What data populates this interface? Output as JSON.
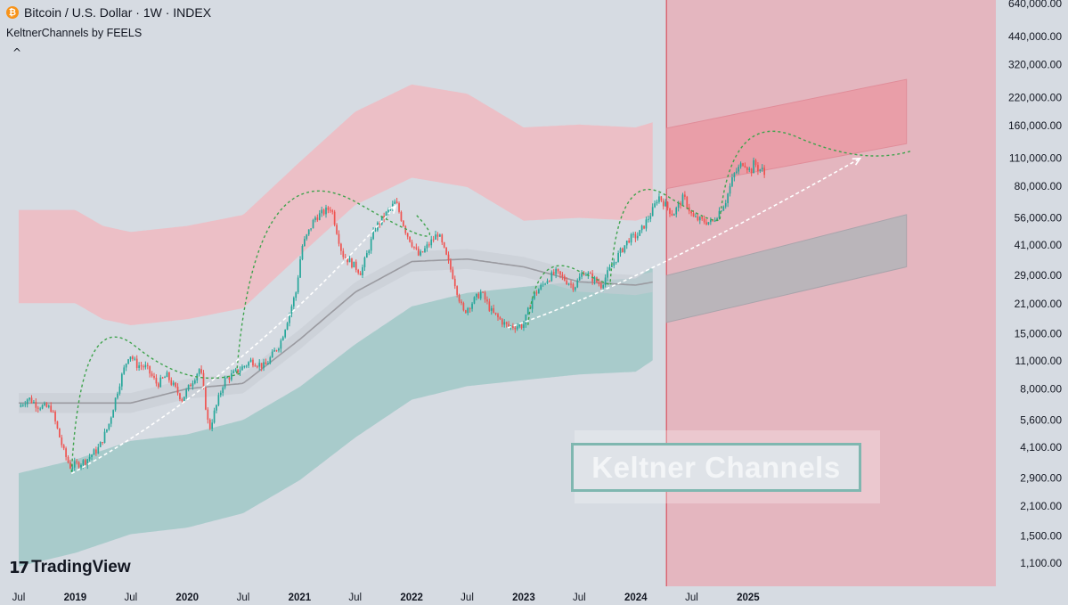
{
  "header": {
    "symbol_title": "Bitcoin / U.S. Dollar · 1W · INDEX",
    "coin_icon": "bitcoin-icon",
    "indicator": "KeltnerChannels by FEELS",
    "collapse_glyph": "^"
  },
  "watermark": {
    "text": "Keltner Channels"
  },
  "branding": {
    "logo_glyph": "17",
    "name": "TradingView"
  },
  "colors": {
    "up": "#26a69a",
    "down": "#ef5350",
    "upper_band": "#f1b8bf",
    "lower_band": "#9cc7c5",
    "midline": "#9a9aa0",
    "highlight_zone": "#e8a9b3",
    "arc": "#3fa34d"
  },
  "chart_data": {
    "type": "candlestick",
    "title": "Bitcoin / U.S. Dollar · 1W · INDEX",
    "scale": "log",
    "y_ticks": [
      1100,
      1500,
      2100,
      2900,
      4100,
      5600,
      8000,
      11000,
      15000,
      21000,
      29000,
      41000,
      56000,
      80000,
      110000,
      160000,
      220000,
      320000,
      440000,
      640000
    ],
    "y_tick_labels": [
      "1,100.00",
      "1,500.00",
      "2,100.00",
      "2,900.00",
      "4,100.00",
      "5,600.00",
      "8,000.00",
      "11,000.00",
      "15,000.00",
      "21,000.00",
      "29,000.00",
      "41,000.00",
      "56,000.00",
      "80,000.00",
      "110,000.00",
      "160,000.00",
      "220,000.00",
      "320,000.00",
      "440,000.00",
      "640,000.00"
    ],
    "x_ticks": [
      {
        "date": "2018-07",
        "label": "Jul"
      },
      {
        "date": "2019-01",
        "label": "2019"
      },
      {
        "date": "2019-07",
        "label": "Jul"
      },
      {
        "date": "2020-01",
        "label": "2020"
      },
      {
        "date": "2020-07",
        "label": "Jul"
      },
      {
        "date": "2021-01",
        "label": "2021"
      },
      {
        "date": "2021-07",
        "label": "Jul"
      },
      {
        "date": "2022-01",
        "label": "2022"
      },
      {
        "date": "2022-07",
        "label": "Jul"
      },
      {
        "date": "2023-01",
        "label": "2023"
      },
      {
        "date": "2023-07",
        "label": "Jul"
      },
      {
        "date": "2024-01",
        "label": "2024"
      },
      {
        "date": "2024-07",
        "label": "Jul"
      },
      {
        "date": "2025-01",
        "label": "2025"
      }
    ],
    "price_path": [
      [
        "2018-07-01",
        6500
      ],
      [
        "2018-08-01",
        7200
      ],
      [
        "2018-09-01",
        6600
      ],
      [
        "2018-10-15",
        6400
      ],
      [
        "2018-11-25",
        3900
      ],
      [
        "2018-12-15",
        3300
      ],
      [
        "2019-02-01",
        3500
      ],
      [
        "2019-03-20",
        4100
      ],
      [
        "2019-04-20",
        5300
      ],
      [
        "2019-05-25",
        8500
      ],
      [
        "2019-06-26",
        12000
      ],
      [
        "2019-07-20",
        10500
      ],
      [
        "2019-08-20",
        10200
      ],
      [
        "2019-09-25",
        8400
      ],
      [
        "2019-10-26",
        9300
      ],
      [
        "2019-12-15",
        7100
      ],
      [
        "2020-02-12",
        10200
      ],
      [
        "2020-03-12",
        5000
      ],
      [
        "2020-04-30",
        8800
      ],
      [
        "2020-06-01",
        9500
      ],
      [
        "2020-07-27",
        11000
      ],
      [
        "2020-09-10",
        10300
      ],
      [
        "2020-10-30",
        13500
      ],
      [
        "2020-12-20",
        24000
      ],
      [
        "2021-01-08",
        40000
      ],
      [
        "2021-02-20",
        56000
      ],
      [
        "2021-04-14",
        63000
      ],
      [
        "2021-05-20",
        37000
      ],
      [
        "2021-07-20",
        30000
      ],
      [
        "2021-09-05",
        50000
      ],
      [
        "2021-11-10",
        67000
      ],
      [
        "2021-12-15",
        47000
      ],
      [
        "2022-01-25",
        36000
      ],
      [
        "2022-03-28",
        47000
      ],
      [
        "2022-05-15",
        29000
      ],
      [
        "2022-06-18",
        19000
      ],
      [
        "2022-08-15",
        24000
      ],
      [
        "2022-09-20",
        19000
      ],
      [
        "2022-11-10",
        16200
      ],
      [
        "2022-12-31",
        16500
      ],
      [
        "2023-02-01",
        23000
      ],
      [
        "2023-03-20",
        28000
      ],
      [
        "2023-04-15",
        30000
      ],
      [
        "2023-06-15",
        25500
      ],
      [
        "2023-07-15",
        30500
      ],
      [
        "2023-09-10",
        26000
      ],
      [
        "2023-10-25",
        34500
      ],
      [
        "2023-12-10",
        44000
      ],
      [
        "2024-01-10",
        46000
      ],
      [
        "2024-02-28",
        62000
      ],
      [
        "2024-03-14",
        72000
      ],
      [
        "2024-05-01",
        58000
      ],
      [
        "2024-06-05",
        71000
      ],
      [
        "2024-07-05",
        56000
      ],
      [
        "2024-08-05",
        54000
      ],
      [
        "2024-09-06",
        53000
      ],
      [
        "2024-10-20",
        68000
      ],
      [
        "2024-11-15",
        91000
      ],
      [
        "2024-12-17",
        106000
      ],
      [
        "2025-01-10",
        94000
      ],
      [
        "2025-01-21",
        106000
      ],
      [
        "2025-02-01",
        98000
      ],
      [
        "2025-02-20",
        96000
      ],
      [
        "2025-02-28",
        84000
      ]
    ],
    "keltner_upper": [
      [
        "2018-07-01",
        36000
      ],
      [
        "2019-01-01",
        36000
      ],
      [
        "2019-04-01",
        30000
      ],
      [
        "2019-07-01",
        28000
      ],
      [
        "2020-01-01",
        30000
      ],
      [
        "2020-07-01",
        34000
      ],
      [
        "2021-01-01",
        62000
      ],
      [
        "2021-07-01",
        110000
      ],
      [
        "2022-01-01",
        150000
      ],
      [
        "2022-07-01",
        135000
      ],
      [
        "2023-01-01",
        92000
      ],
      [
        "2023-07-01",
        95000
      ],
      [
        "2024-01-01",
        92000
      ],
      [
        "2024-03-01",
        98000
      ]
    ],
    "keltner_mid": [
      [
        "2018-07-01",
        6800
      ],
      [
        "2019-01-01",
        6800
      ],
      [
        "2019-07-01",
        6800
      ],
      [
        "2020-01-01",
        8000
      ],
      [
        "2020-07-01",
        8500
      ],
      [
        "2021-01-01",
        14000
      ],
      [
        "2021-07-01",
        24000
      ],
      [
        "2022-01-01",
        34000
      ],
      [
        "2022-07-01",
        35000
      ],
      [
        "2023-01-01",
        32000
      ],
      [
        "2023-07-01",
        27000
      ],
      [
        "2024-01-01",
        26000
      ],
      [
        "2024-03-01",
        27000
      ]
    ],
    "keltner_lower": [
      [
        "2018-07-01",
        1800
      ],
      [
        "2019-01-01",
        2100
      ],
      [
        "2019-07-01",
        2600
      ],
      [
        "2020-01-01",
        2800
      ],
      [
        "2020-07-01",
        3300
      ],
      [
        "2021-01-01",
        4800
      ],
      [
        "2021-07-01",
        7800
      ],
      [
        "2022-01-01",
        12000
      ],
      [
        "2022-07-01",
        14000
      ],
      [
        "2023-01-01",
        15000
      ],
      [
        "2023-07-01",
        16000
      ],
      [
        "2024-01-01",
        16500
      ],
      [
        "2024-03-01",
        19000
      ]
    ],
    "keltner_band_ratio": 1.7,
    "highlight_zone": {
      "start": "2024-04-10",
      "end": "2027-04-01"
    },
    "projected_upper_channel": [
      [
        "2024-04-10",
        78000,
        155000
      ],
      [
        "2026-06-01",
        130000,
        270000
      ]
    ],
    "projected_lower_channel": [
      [
        "2024-04-10",
        17000,
        29000
      ],
      [
        "2026-06-01",
        32000,
        58000
      ]
    ],
    "cycle_arcs": [
      [
        "2018-12-20",
        3100,
        "2019-07-15",
        13000,
        "2020-06-20",
        9500
      ],
      [
        "2020-06-10",
        9500,
        "2021-07-10",
        66000,
        "2022-01-15",
        58000
      ],
      [
        "2023-01-15",
        16500,
        "2023-06-20",
        31000,
        "2023-10-10",
        26500
      ],
      [
        "2023-10-10",
        27000,
        "2024-04-10",
        72000,
        "2024-10-01",
        55000
      ],
      [
        "2024-10-01",
        55000,
        "2025-06-10",
        140000,
        "2026-06-20",
        120000
      ]
    ],
    "trend_arrows": [
      [
        "2018-12-20",
        3050,
        "2020-06-10",
        8400,
        "2021-11-10",
        64000
      ],
      [
        "2022-11-10",
        16000,
        "2024-01-01",
        26000,
        "2026-01-01",
        110000
      ]
    ]
  }
}
